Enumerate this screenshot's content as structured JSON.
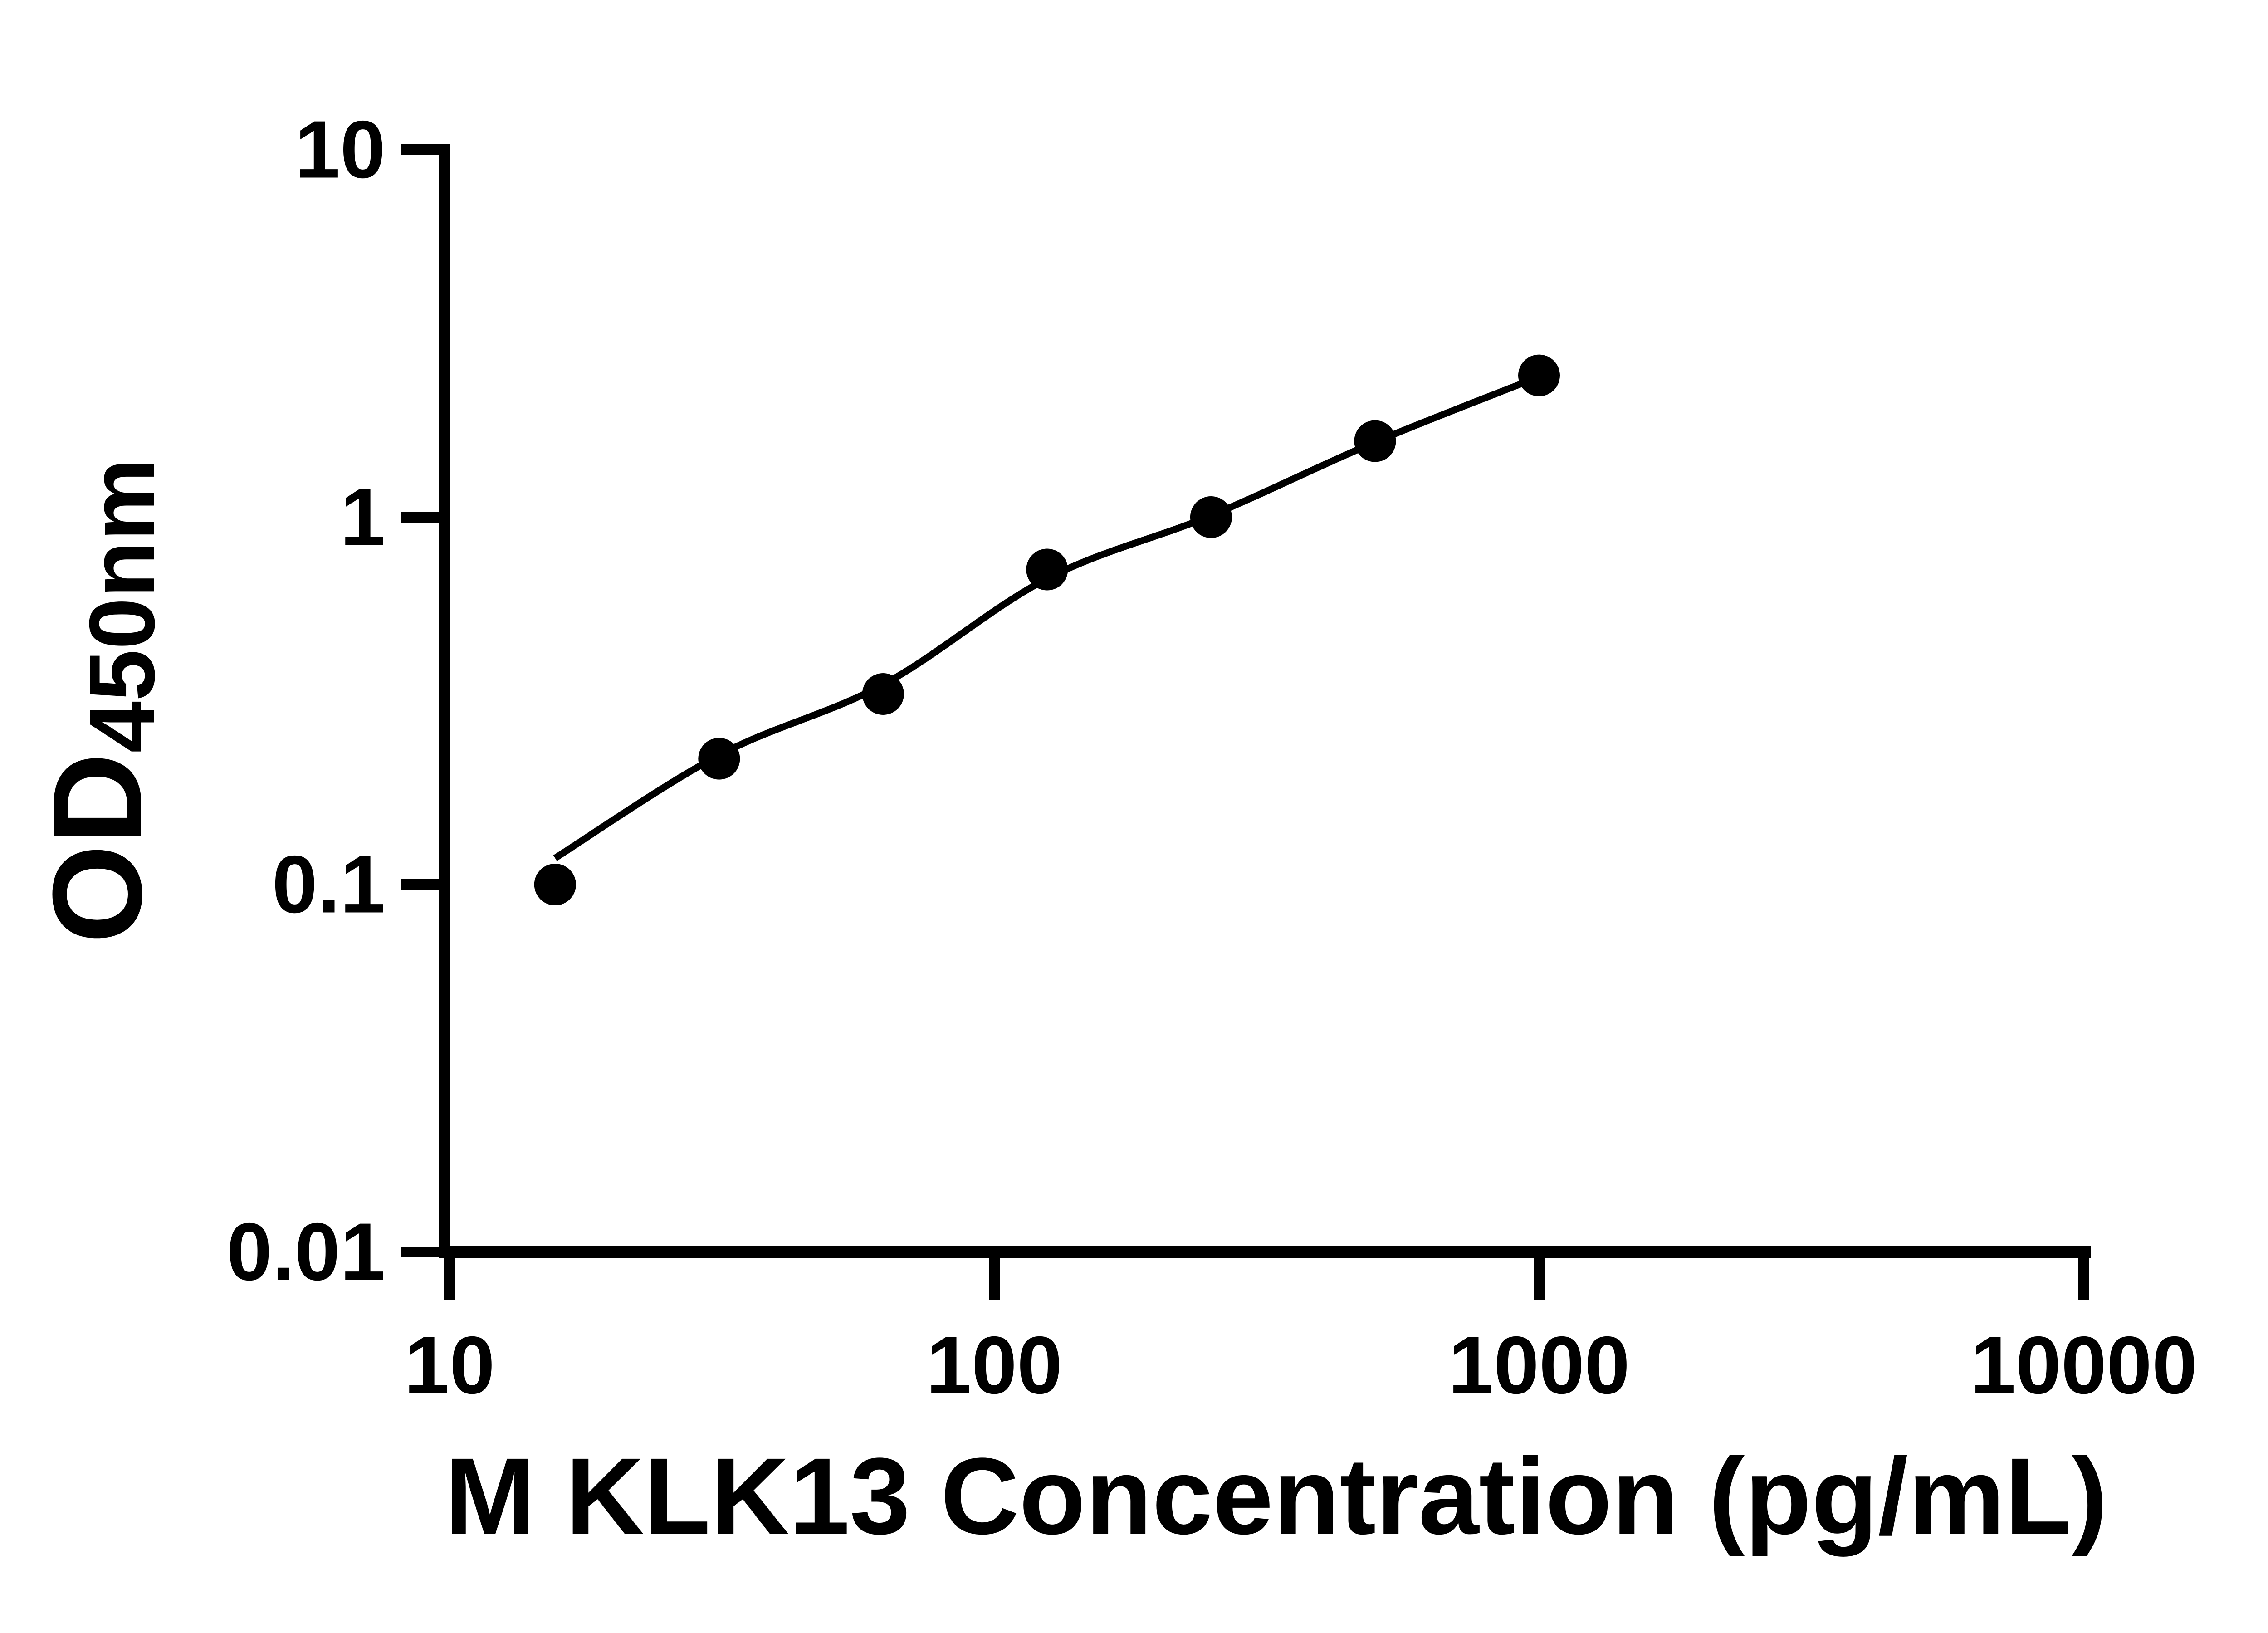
{
  "figure": {
    "background_color": "#ffffff",
    "ink_color": "#000000"
  },
  "chart_data": {
    "type": "scatter",
    "title": "",
    "xlabel": "M KLK13 Concentration (pg/mL)",
    "ylabel": "OD450nm",
    "ylabel_main": "OD",
    "ylabel_sub": "450nm",
    "x_scale": "log",
    "y_scale": "log",
    "xlim": [
      10,
      10000
    ],
    "ylim": [
      0.01,
      10
    ],
    "grid": false,
    "legend": false,
    "x_tick_values": [
      10,
      100,
      1000,
      10000
    ],
    "x_tick_labels": [
      "10",
      "100",
      "1000",
      "10000"
    ],
    "y_tick_values": [
      10,
      1,
      0.1,
      0.01
    ],
    "y_tick_labels": [
      "10",
      "1",
      "0.1",
      "0.01"
    ],
    "series": [
      {
        "name": "standard-points",
        "type": "scatter",
        "marker": "filled-circle",
        "color": "#000000",
        "x": [
          15.625,
          31.25,
          62.5,
          125,
          250,
          500,
          1000
        ],
        "y": [
          0.1,
          0.22,
          0.33,
          0.72,
          1.0,
          1.61,
          2.43
        ]
      },
      {
        "name": "fit-curve",
        "type": "line",
        "color": "#000000",
        "x": [
          15.625,
          31.25,
          62.5,
          125,
          250,
          500,
          1000
        ],
        "y": [
          0.118,
          0.225,
          0.35,
          0.68,
          1.01,
          1.6,
          2.41
        ]
      }
    ]
  }
}
